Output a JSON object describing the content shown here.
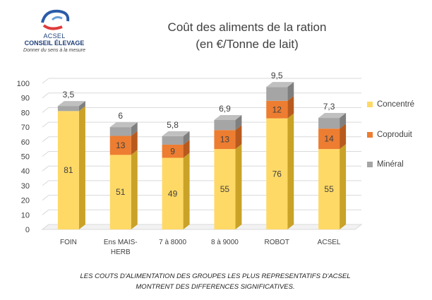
{
  "logo": {
    "name": "ACSEL",
    "subname": "CONSEIL ÉLEVAGE",
    "tagline": "Donner du sens à la mesure"
  },
  "colors": {
    "concentre": "#FFD966",
    "coproduit": "#ED7D31",
    "mineral": "#A5A5A5"
  },
  "chart_data": {
    "type": "bar",
    "stacked": true,
    "three_d": true,
    "title_line1": "Coût des aliments de la ration",
    "title_line2": "(en €/Tonne de lait)",
    "categories": [
      "FOIN",
      "Ens MAIS-\nHERB",
      "7 à 8000",
      "8 à 9000",
      "ROBOT",
      "ACSEL"
    ],
    "series": [
      {
        "name": "Concentré",
        "values": [
          81,
          51,
          49,
          55,
          76,
          55
        ]
      },
      {
        "name": "Coproduit",
        "values": [
          0,
          13,
          9,
          13,
          12,
          14
        ]
      },
      {
        "name": "Minéral",
        "values": [
          3.5,
          6,
          5.8,
          6.9,
          9.5,
          7.3
        ]
      }
    ],
    "value_labels": [
      [
        "81",
        "51",
        "49",
        "55",
        "76",
        "55"
      ],
      [
        "",
        "13",
        "9",
        "13",
        "12",
        "14"
      ],
      [
        "3,5",
        "6",
        "5,8",
        "6,9",
        "9,5",
        "7,3"
      ]
    ],
    "ylim": [
      0,
      100
    ],
    "yticks": [
      0,
      10,
      20,
      30,
      40,
      50,
      60,
      70,
      80,
      90,
      100
    ],
    "grid": true,
    "legend": "right"
  },
  "caption": {
    "line1": "Les couts d'alimentation des groupes les plus representatifs d'ACSEL",
    "line2": "montrent des  differences significatives."
  }
}
